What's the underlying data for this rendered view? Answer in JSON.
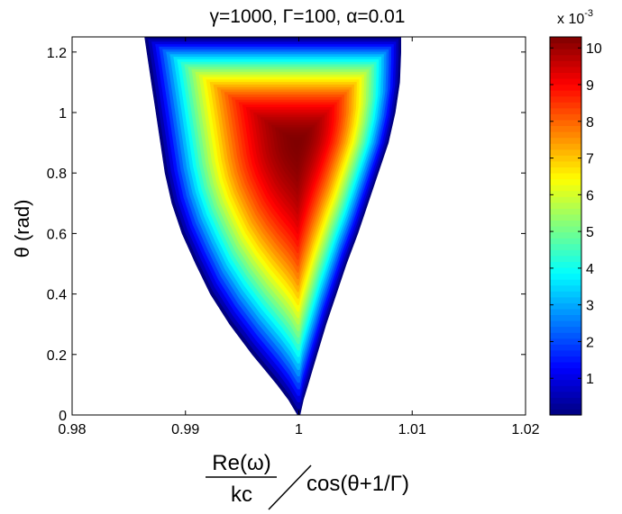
{
  "chart_data": {
    "type": "heatmap",
    "title": "γ=1000, Γ=100, α=0.01",
    "xlabel": {
      "numerator": "Re(ω)",
      "denominator": "kc",
      "divisor": "cos(θ+1/Γ)"
    },
    "ylabel": "θ (rad)",
    "xlim": [
      0.98,
      1.02
    ],
    "ylim": [
      0,
      1.25
    ],
    "x_ticks": [
      "0.98",
      "0.99",
      "1",
      "1.01",
      "1.02"
    ],
    "y_ticks": [
      "0",
      "0.2",
      "0.4",
      "0.6",
      "0.8",
      "1",
      "1.2"
    ],
    "grid": false,
    "colorscale": "jet",
    "colorbar": {
      "range": [
        0,
        10.3
      ],
      "ticks": [
        "1",
        "2",
        "3",
        "4",
        "5",
        "6",
        "7",
        "8",
        "9",
        "10"
      ],
      "exponent_label": "x 10",
      "exponent_sup": "-3"
    },
    "region": {
      "rows": [
        {
          "y": 0.0,
          "x_left": 0.9999,
          "x_right": 1.0001
        },
        {
          "y": 0.05,
          "x_left": 0.9991,
          "x_right": 1.0004
        },
        {
          "y": 0.1,
          "x_left": 0.9981,
          "x_right": 1.0008
        },
        {
          "y": 0.15,
          "x_left": 0.997,
          "x_right": 1.0012
        },
        {
          "y": 0.2,
          "x_left": 0.9959,
          "x_right": 1.0016
        },
        {
          "y": 0.3,
          "x_left": 0.9939,
          "x_right": 1.0024
        },
        {
          "y": 0.4,
          "x_left": 0.9922,
          "x_right": 1.0033
        },
        {
          "y": 0.5,
          "x_left": 0.9909,
          "x_right": 1.0042
        },
        {
          "y": 0.6,
          "x_left": 0.9897,
          "x_right": 1.0052
        },
        {
          "y": 0.7,
          "x_left": 0.9888,
          "x_right": 1.0061
        },
        {
          "y": 0.8,
          "x_left": 0.9882,
          "x_right": 1.007
        },
        {
          "y": 0.9,
          "x_left": 0.9878,
          "x_right": 1.0079
        },
        {
          "y": 1.0,
          "x_left": 0.9874,
          "x_right": 1.0085
        },
        {
          "y": 1.1,
          "x_left": 0.987,
          "x_right": 1.0089
        },
        {
          "y": 1.2,
          "x_left": 0.9866,
          "x_right": 1.009
        },
        {
          "y": 1.25,
          "x_left": 0.9864,
          "x_right": 1.009
        }
      ],
      "peak": {
        "x": 0.99985,
        "y": 0.9,
        "value": 10.3
      },
      "edge_value": 0.0
    }
  }
}
